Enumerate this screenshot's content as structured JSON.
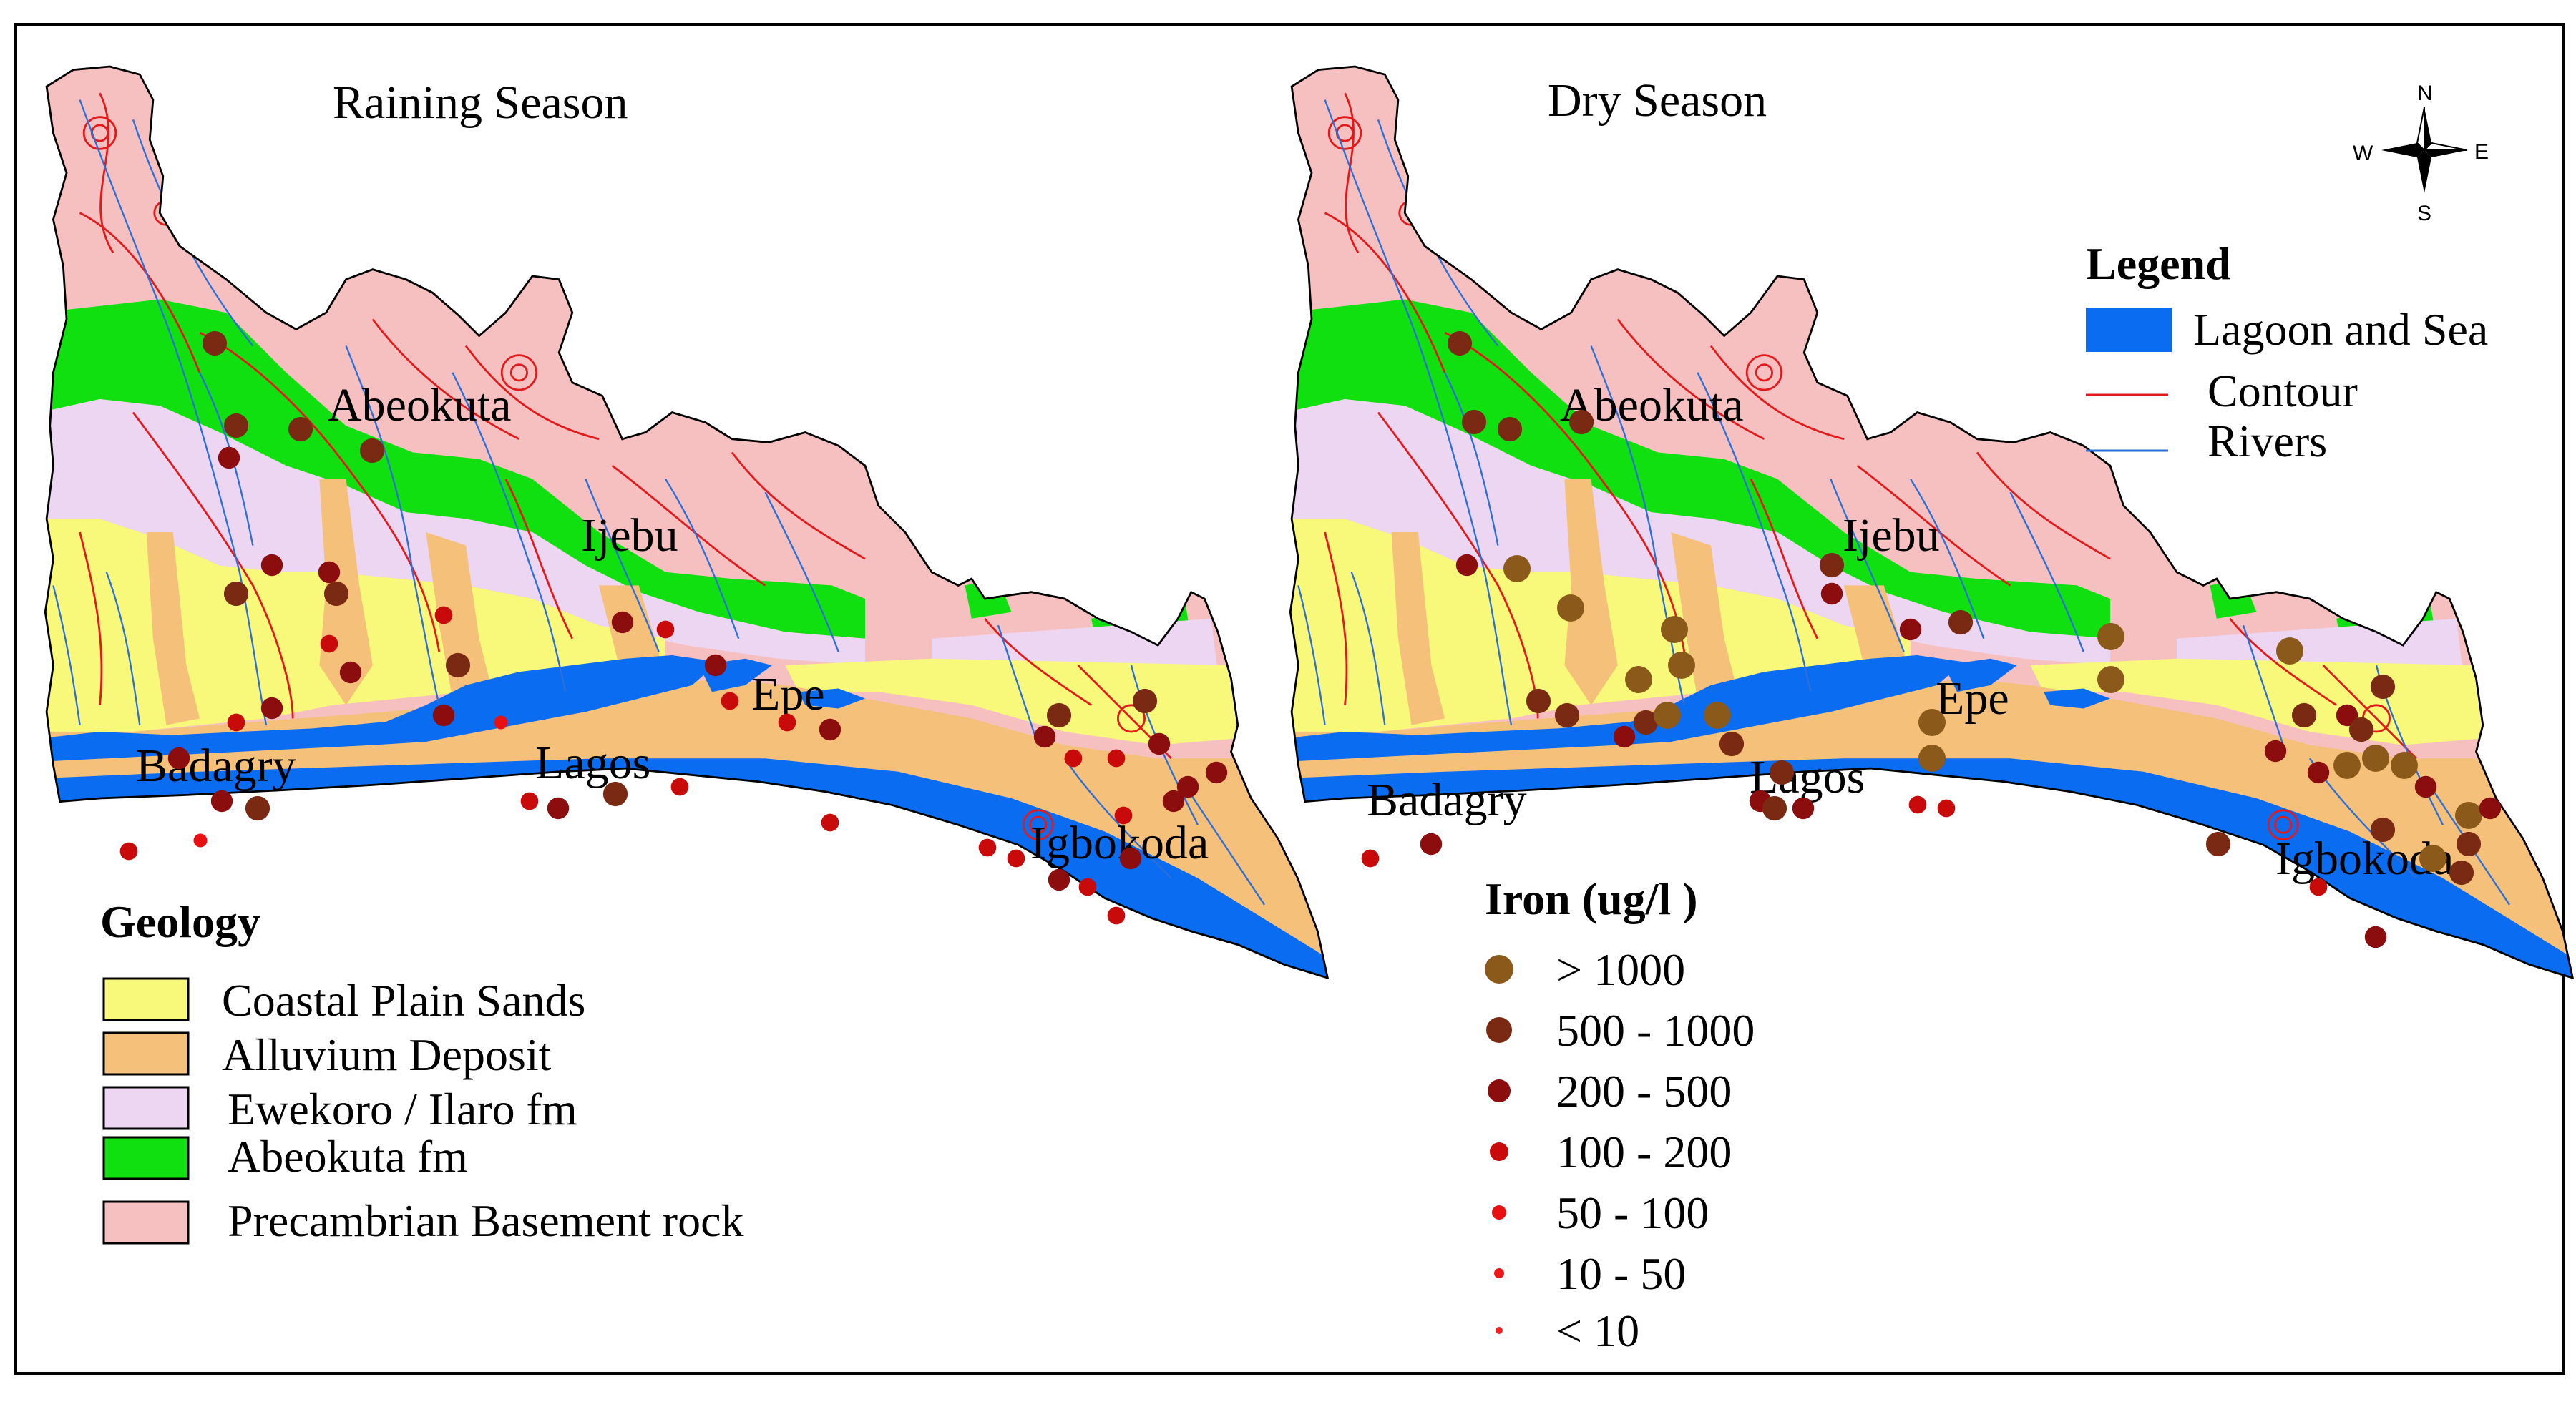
{
  "panels": [
    {
      "title": "Raining Season"
    },
    {
      "title": "Dry Season"
    }
  ],
  "cities": [
    "Abeokuta",
    "Ijebu",
    "Epe",
    "Badagry",
    "Lagos",
    "Igbokoda"
  ],
  "compass": {
    "n": "N",
    "s": "S",
    "e": "E",
    "w": "W"
  },
  "map_legend": {
    "title": "Legend",
    "items": [
      {
        "label": "Lagoon and Sea",
        "color": "#0a6cf0",
        "kind": "fill"
      },
      {
        "label": "Contour",
        "color": "#e31a1c",
        "kind": "line"
      },
      {
        "label": "Rivers",
        "color": "#2b6fd8",
        "kind": "line"
      }
    ]
  },
  "geology": {
    "title": "Geology",
    "items": [
      {
        "label": "Coastal Plain Sands",
        "color": "#f8f87a"
      },
      {
        "label": "Alluvium Deposit",
        "color": "#f5c07a"
      },
      {
        "label": "Ewekoro / Ilaro fm",
        "color": "#ecd6f2"
      },
      {
        "label": "Abeokuta fm",
        "color": "#10e010"
      },
      {
        "label": "Precambrian Basement rock",
        "color": "#f6c0c0"
      }
    ]
  },
  "iron": {
    "title": "Iron (ug/l )",
    "classes": [
      {
        "label": "> 1000",
        "color": "#8b5a1a"
      },
      {
        "label": "500 - 1000",
        "color": "#7a2a12"
      },
      {
        "label": "200 - 500",
        "color": "#8b0d0d"
      },
      {
        "label": "100 - 200",
        "color": "#c80a0a"
      },
      {
        "label": "50 - 100",
        "color": "#e81010"
      },
      {
        "label": "10 - 50",
        "color": "#f01818"
      },
      {
        "label": "< 10",
        "color": "#f42020"
      }
    ]
  },
  "colors": {
    "frame": "#000000",
    "boundary": "#000000"
  }
}
